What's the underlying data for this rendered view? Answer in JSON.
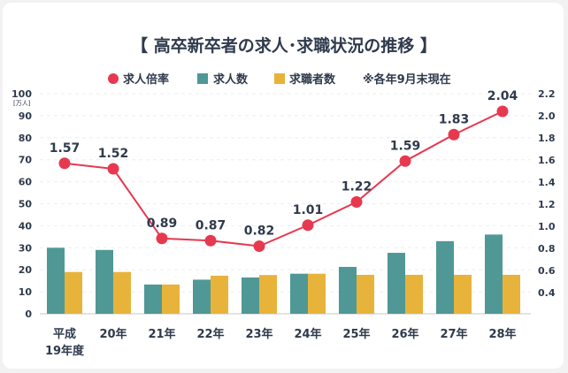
{
  "chart_data": {
    "type": "bar+line",
    "title": "【 高卒新卒者の求人･求職状況の推移 】",
    "note": "※各年9月末現在",
    "y_left_unit": "[万人]",
    "y_left_ticks": [
      0,
      10,
      20,
      30,
      40,
      50,
      60,
      70,
      80,
      90,
      100
    ],
    "ylim_left": [
      0,
      100
    ],
    "y_right_ticks": [
      "0.4",
      "0.6",
      "0.8",
      "1.0",
      "1.2",
      "1.4",
      "1.6",
      "1.8",
      "2.0",
      "2.2"
    ],
    "ylim_right": [
      0,
      2.2
    ],
    "grid": "horizontal dashed",
    "legend_placement": "top",
    "categories": [
      "平成\n19年度",
      "20年",
      "21年",
      "22年",
      "23年",
      "24年",
      "25年",
      "26年",
      "27年",
      "28年"
    ],
    "series": [
      {
        "name": "求人倍率",
        "type": "line",
        "axis": "right",
        "color": "#e63950",
        "values": [
          1.57,
          1.52,
          0.89,
          0.87,
          0.82,
          1.01,
          1.22,
          1.59,
          1.83,
          2.04
        ]
      },
      {
        "name": "求人数",
        "type": "bar",
        "axis": "left",
        "color": "#4f9896",
        "values": [
          30,
          29,
          13.3,
          15.5,
          16.5,
          18.2,
          21.3,
          27.7,
          33,
          36
        ]
      },
      {
        "name": "求職者数",
        "type": "bar",
        "axis": "left",
        "color": "#e8b33a",
        "values": [
          19,
          19,
          13.3,
          17.3,
          17.6,
          18.2,
          17.7,
          17.7,
          17.7,
          17.7
        ]
      }
    ]
  }
}
